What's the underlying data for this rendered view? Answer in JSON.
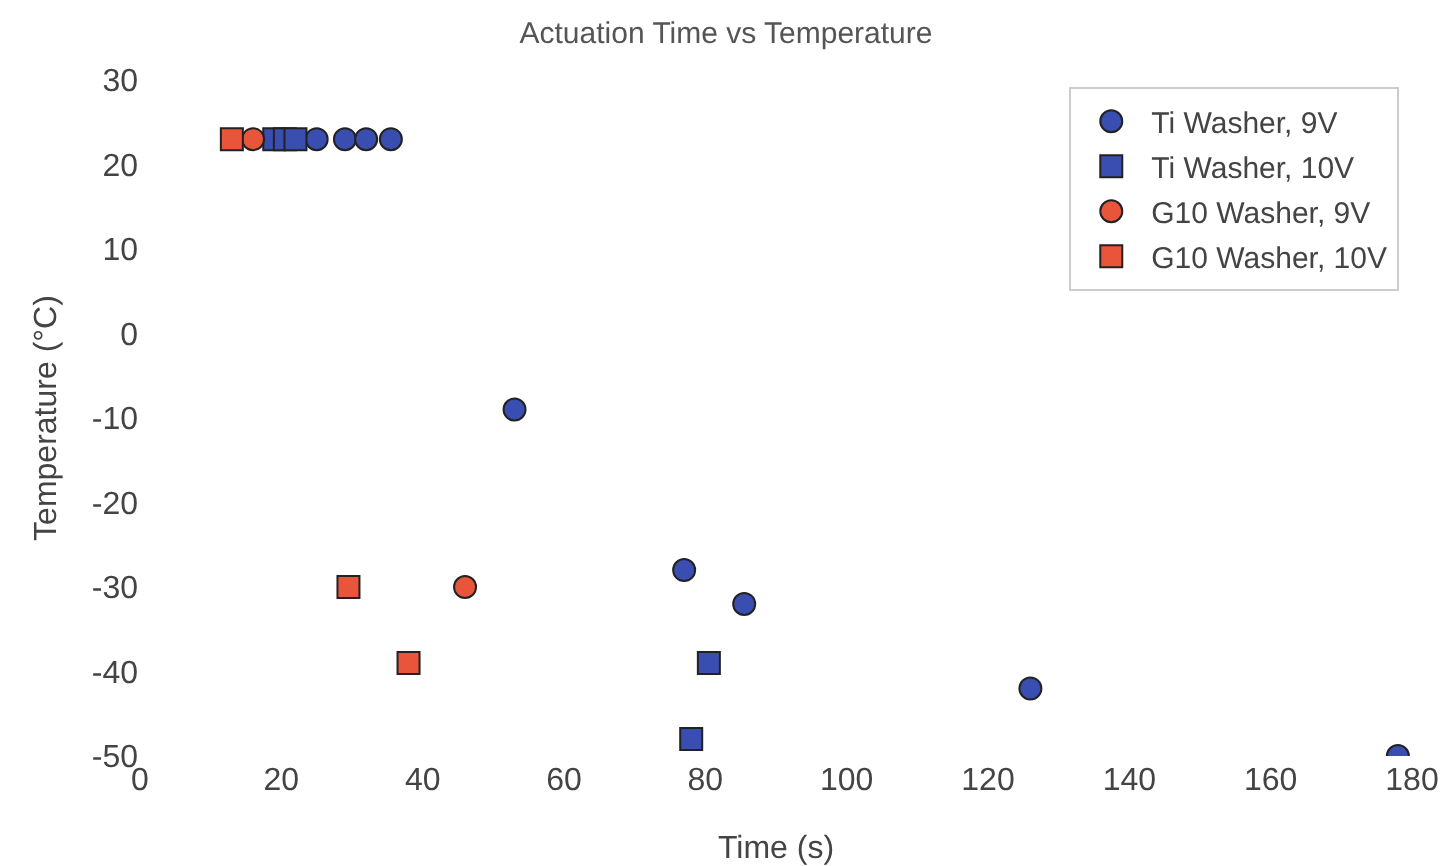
{
  "chart_data": {
    "type": "scatter",
    "title": "Actuation Time vs Temperature",
    "xlabel": "Time (s)",
    "ylabel": "Temperature (°C)",
    "xlim": [
      0,
      180
    ],
    "xticks": [
      0,
      20,
      40,
      60,
      80,
      100,
      120,
      140,
      160,
      180
    ],
    "ylim": [
      -50,
      30
    ],
    "yticks": [
      -50,
      -40,
      -30,
      -20,
      -10,
      0,
      10,
      20,
      30
    ],
    "grid": false,
    "legend": "top right",
    "series": [
      {
        "name": "Ti Washer, 9V",
        "color": "#3a4db0",
        "marker": "circle",
        "x": [
          25,
          29,
          32,
          35.5,
          53,
          77,
          85.5,
          126,
          178
        ],
        "values": [
          23,
          23,
          23,
          23,
          -9,
          -28,
          -32,
          -42,
          -50
        ]
      },
      {
        "name": "Ti Washer, 10V",
        "color": "#3a4db0",
        "marker": "square",
        "x": [
          19,
          20.5,
          22,
          80.5,
          78
        ],
        "values": [
          23,
          23,
          23,
          -39,
          -48
        ]
      },
      {
        "name": "G10 Washer, 9V",
        "color": "#e8553a",
        "marker": "circle",
        "x": [
          16,
          46
        ],
        "values": [
          23,
          -30
        ]
      },
      {
        "name": "G10 Washer, 10V",
        "color": "#e8553a",
        "marker": "square",
        "x": [
          13,
          29.5,
          38
        ],
        "values": [
          23,
          -30,
          -39
        ]
      }
    ]
  }
}
